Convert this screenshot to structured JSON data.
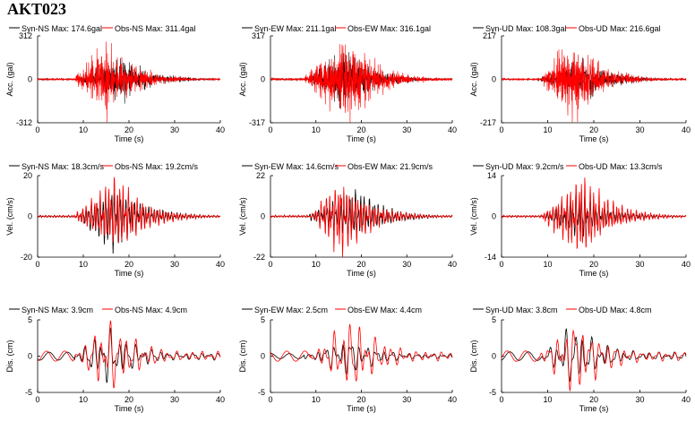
{
  "station": "AKT023",
  "colors": {
    "syn": "#000000",
    "obs": "#ff0000"
  },
  "chart_data": [
    {
      "type": "line",
      "row": 0,
      "component": "NS",
      "xlabel": "Time (s)",
      "ylabel": "Acc. (gal)",
      "xlim": [
        0,
        40
      ],
      "ylim": [
        -312,
        312
      ],
      "yticks": [
        -312,
        0,
        312
      ],
      "xticks": [
        0,
        10,
        20,
        30,
        40
      ],
      "series": [
        {
          "name": "Syn-NS",
          "role": "syn",
          "legend": "Syn-NS  Max: 174.6gal",
          "max": 174.6
        },
        {
          "name": "Obs-NS",
          "role": "obs",
          "legend": "Obs-NS  Max: 311.4gal",
          "max": 311.4
        }
      ]
    },
    {
      "type": "line",
      "row": 0,
      "component": "EW",
      "xlabel": "Time (s)",
      "ylabel": "Acc. (gal)",
      "xlim": [
        0,
        40
      ],
      "ylim": [
        -317,
        317
      ],
      "yticks": [
        -317,
        0,
        317
      ],
      "xticks": [
        0,
        10,
        20,
        30,
        40
      ],
      "series": [
        {
          "name": "Syn-EW",
          "role": "syn",
          "legend": "Syn-EW  Max: 211.1gal",
          "max": 211.1
        },
        {
          "name": "Obs-EW",
          "role": "obs",
          "legend": "Obs-EW  Max: 316.1gal",
          "max": 316.1
        }
      ]
    },
    {
      "type": "line",
      "row": 0,
      "component": "UD",
      "xlabel": "Time (s)",
      "ylabel": "Acc. (gal)",
      "xlim": [
        0,
        40
      ],
      "ylim": [
        -217,
        217
      ],
      "yticks": [
        -217,
        0,
        217
      ],
      "xticks": [
        0,
        10,
        20,
        30,
        40
      ],
      "series": [
        {
          "name": "Syn-UD",
          "role": "syn",
          "legend": "Syn-UD  Max: 108.3gal",
          "max": 108.3
        },
        {
          "name": "Obs-UD",
          "role": "obs",
          "legend": "Obs-UD  Max: 216.6gal",
          "max": 216.6
        }
      ]
    },
    {
      "type": "line",
      "row": 1,
      "component": "NS",
      "xlabel": "Time (s)",
      "ylabel": "Vel. (cm/s)",
      "xlim": [
        0,
        40
      ],
      "ylim": [
        -20,
        20
      ],
      "yticks": [
        -20,
        0,
        20
      ],
      "xticks": [
        0,
        10,
        20,
        30,
        40
      ],
      "series": [
        {
          "name": "Syn-NS",
          "role": "syn",
          "legend": "Syn-NS  Max: 18.3cm/s",
          "max": 18.3
        },
        {
          "name": "Obs-NS",
          "role": "obs",
          "legend": "Obs-NS  Max: 19.2cm/s",
          "max": 19.2
        }
      ]
    },
    {
      "type": "line",
      "row": 1,
      "component": "EW",
      "xlabel": "Time (s)",
      "ylabel": "Vel. (cm/s)",
      "xlim": [
        0,
        40
      ],
      "ylim": [
        -22,
        22
      ],
      "yticks": [
        -22,
        0,
        22
      ],
      "xticks": [
        0,
        10,
        20,
        30,
        40
      ],
      "series": [
        {
          "name": "Syn-EW",
          "role": "syn",
          "legend": "Syn-EW  Max: 14.6cm/s",
          "max": 14.6
        },
        {
          "name": "Obs-EW",
          "role": "obs",
          "legend": "Obs-EW  Max: 21.9cm/s",
          "max": 21.9
        }
      ]
    },
    {
      "type": "line",
      "row": 1,
      "component": "UD",
      "xlabel": "Time (s)",
      "ylabel": "Vel. (cm/s)",
      "xlim": [
        0,
        40
      ],
      "ylim": [
        -14,
        14
      ],
      "yticks": [
        -14,
        0,
        14
      ],
      "xticks": [
        0,
        10,
        20,
        30,
        40
      ],
      "series": [
        {
          "name": "Syn-UD",
          "role": "syn",
          "legend": "Syn-UD  Max: 9.2cm/s",
          "max": 9.2
        },
        {
          "name": "Obs-UD",
          "role": "obs",
          "legend": "Obs-UD  Max: 13.3cm/s",
          "max": 13.3
        }
      ]
    },
    {
      "type": "line",
      "row": 2,
      "component": "NS",
      "xlabel": "Time (s)",
      "ylabel": "Dis. (cm)",
      "xlim": [
        0,
        40
      ],
      "ylim": [
        -5,
        5
      ],
      "yticks": [
        -5,
        0,
        5
      ],
      "xticks": [
        0,
        10,
        20,
        30,
        40
      ],
      "series": [
        {
          "name": "Syn-NS",
          "role": "syn",
          "legend": "Syn-NS  Max: 3.9cm",
          "max": 3.9
        },
        {
          "name": "Obs-NS",
          "role": "obs",
          "legend": "Obs-NS  Max: 4.9cm",
          "max": 4.9
        }
      ]
    },
    {
      "type": "line",
      "row": 2,
      "component": "EW",
      "xlabel": "Time (s)",
      "ylabel": "Dis. (cm)",
      "xlim": [
        0,
        40
      ],
      "ylim": [
        -5,
        5
      ],
      "yticks": [
        -5,
        0,
        5
      ],
      "xticks": [
        0,
        10,
        20,
        30,
        40
      ],
      "series": [
        {
          "name": "Syn-EW",
          "role": "syn",
          "legend": "Syn-EW  Max: 2.5cm",
          "max": 2.5
        },
        {
          "name": "Obs-EW",
          "role": "obs",
          "legend": "Obs-EW  Max: 4.4cm",
          "max": 4.4
        }
      ]
    },
    {
      "type": "line",
      "row": 2,
      "component": "UD",
      "xlabel": "Time (s)",
      "ylabel": "Dis. (cm)",
      "xlim": [
        0,
        40
      ],
      "ylim": [
        -5,
        5
      ],
      "yticks": [
        -5,
        0,
        5
      ],
      "xticks": [
        0,
        10,
        20,
        30,
        40
      ],
      "series": [
        {
          "name": "Syn-UD",
          "role": "syn",
          "legend": "Syn-UD  Max: 3.8cm",
          "max": 3.8
        },
        {
          "name": "Obs-UD",
          "role": "obs",
          "legend": "Obs-UD  Max: 4.8cm",
          "max": 4.8
        }
      ]
    }
  ]
}
